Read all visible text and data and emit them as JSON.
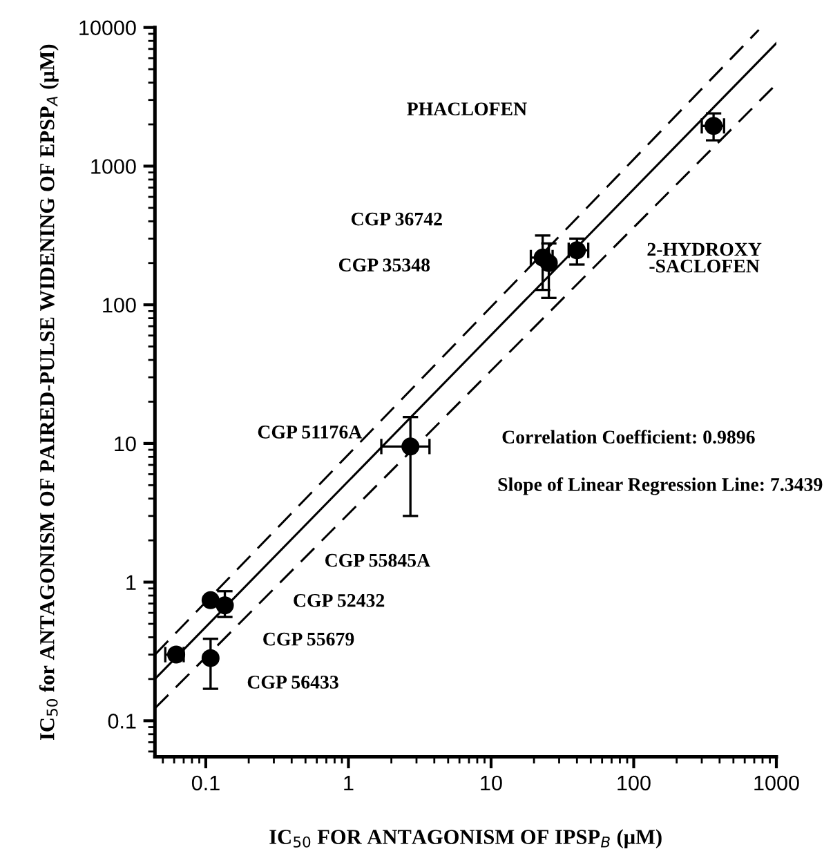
{
  "chart_data": {
    "type": "scatter",
    "xlabel": "IC$_{50}$ FOR ANTAGONISM OF IPSP$_{B}$ (μM)",
    "ylabel": "IC$_{50}$ for ANTAGONISM OF PAIRED-PULSE WIDENING OF EPSP$_{A}$ (μM)",
    "log": "xy",
    "xlim": [
      0.044,
      1000
    ],
    "ylim": [
      0.055,
      10000
    ],
    "xticks": [
      0.1,
      1,
      10,
      100,
      1000
    ],
    "yticks": [
      0.1,
      1,
      10,
      100,
      1000,
      10000
    ],
    "grid": false,
    "legend": false,
    "series": [
      {
        "marker": "circle",
        "color": "#000000",
        "x": [
          363,
          40,
          23,
          25.4,
          2.72,
          0.108,
          0.136,
          0.062,
          0.108
        ],
        "values": [
          1950,
          247,
          219,
          200,
          9.5,
          0.74,
          0.68,
          0.3,
          0.283
        ],
        "errors": [
          [
            1535,
            2400
          ],
          [
            195,
            300
          ],
          [
            128,
            316
          ],
          [
            112,
            277
          ],
          [
            3.0,
            15.5
          ],
          null,
          [
            0.56,
            0.86
          ],
          null,
          [
            0.17,
            0.39
          ]
        ],
        "xerrors": [
          [
            300,
            430
          ],
          [
            35,
            48
          ],
          [
            19,
            27
          ],
          null,
          [
            1.7,
            3.7
          ],
          null,
          null,
          [
            0.052,
            0.07
          ],
          null
        ]
      },
      {
        "type": "line",
        "color": "#000000",
        "line_style": "dashed",
        "x": [
          0.044,
          753
        ],
        "values": [
          0.3,
          9600
        ]
      },
      {
        "type": "line",
        "color": "#000000",
        "line_style": "solid",
        "x": [
          0.044,
          1000
        ],
        "values": [
          0.2,
          7700
        ]
      },
      {
        "type": "line",
        "color": "#000000",
        "line_style": "dashed",
        "x": [
          0.044,
          942
        ],
        "values": [
          0.123,
          3670
        ]
      }
    ],
    "annotations": [
      "PHACLOFEN",
      "2-HYDROXY\n-SACLOFEN",
      "CGP 36742",
      "CGP 35348",
      "CGP 51176A",
      "CGP 55845A",
      "CGP 52432",
      "CGP 55679",
      "CGP 56433",
      "Correlation Coefficient: 0.9896",
      "Slope of Linear Regression Line: 7.3439"
    ]
  }
}
